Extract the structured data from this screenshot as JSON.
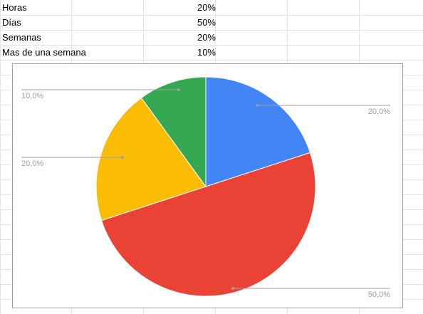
{
  "sheet": {
    "rows": [
      {
        "label": "Horas",
        "value": "20%"
      },
      {
        "label": "Días",
        "value": "50%"
      },
      {
        "label": "Semanas",
        "value": "20%"
      },
      {
        "label": "Mas de una semana",
        "value": "10%"
      }
    ]
  },
  "chart_data": {
    "type": "pie",
    "categories": [
      "Horas",
      "Días",
      "Semanas",
      "Mas de una semana"
    ],
    "values": [
      20,
      50,
      20,
      10
    ],
    "labels": [
      "20,0%",
      "50,0%",
      "20,0%",
      "10,0%"
    ],
    "colors": [
      "#4285f4",
      "#ea4335",
      "#fbbc04",
      "#34a853"
    ],
    "title": "",
    "legend": "none"
  }
}
